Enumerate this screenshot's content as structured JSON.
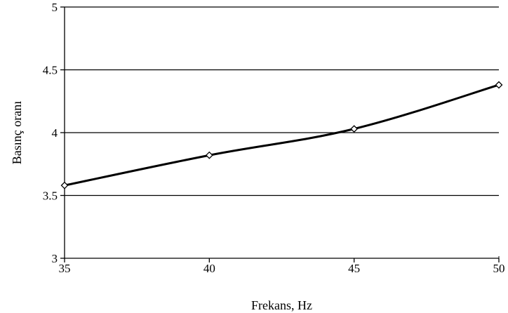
{
  "chart_data": {
    "type": "line",
    "title": "",
    "xlabel": "Frekans, Hz",
    "ylabel": "Basınç oranı",
    "x": [
      35,
      40,
      45,
      50
    ],
    "x_ticks": [
      "35",
      "40",
      "45",
      "50"
    ],
    "y_ticks": [
      "3",
      "3.5",
      "4",
      "4.5",
      "5"
    ],
    "xlim": [
      35,
      50
    ],
    "ylim": [
      3,
      5
    ],
    "grid": "horizontal",
    "legend": "none",
    "series": [
      {
        "values": [
          3.58,
          3.82,
          4.03,
          4.38
        ],
        "color": "#000000",
        "marker": "diamond"
      }
    ]
  }
}
